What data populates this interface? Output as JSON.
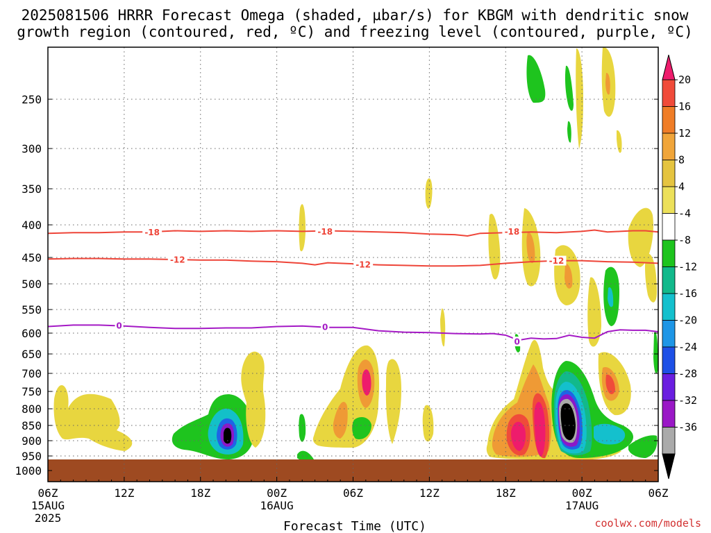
{
  "chart_data": {
    "type": "heatmap",
    "title_line1": "2025081506 HRRR Forecast Omega (shaded, µbar/s) for KBGM with dendritic snow",
    "title_line2": "growth region (contoured, red, ºC) and freezing level (contoured, purple, ºC)",
    "xlabel": "Forecast Time (UTC)",
    "credit": "coolwx.com/models",
    "x_ticks": [
      {
        "hour": 0,
        "label": "06Z",
        "sub1": "15AUG",
        "sub2": "2025"
      },
      {
        "hour": 6,
        "label": "12Z",
        "sub1": "",
        "sub2": ""
      },
      {
        "hour": 12,
        "label": "18Z",
        "sub1": "",
        "sub2": ""
      },
      {
        "hour": 18,
        "label": "00Z",
        "sub1": "16AUG",
        "sub2": ""
      },
      {
        "hour": 24,
        "label": "06Z",
        "sub1": "",
        "sub2": ""
      },
      {
        "hour": 30,
        "label": "12Z",
        "sub1": "",
        "sub2": ""
      },
      {
        "hour": 36,
        "label": "18Z",
        "sub1": "",
        "sub2": ""
      },
      {
        "hour": 42,
        "label": "00Z",
        "sub1": "17AUG",
        "sub2": ""
      },
      {
        "hour": 48,
        "label": "06Z",
        "sub1": "",
        "sub2": ""
      }
    ],
    "y_ticks": [
      250,
      300,
      350,
      400,
      450,
      500,
      550,
      600,
      650,
      700,
      750,
      800,
      850,
      900,
      950,
      1000
    ],
    "colorbar": {
      "labels": [
        "20",
        "16",
        "12",
        "8",
        "4",
        "-4",
        "-8",
        "-12",
        "-16",
        "-20",
        "-24",
        "-28",
        "-32",
        "-36"
      ],
      "colors": [
        "#ee1c6c",
        "#f04b3a",
        "#ef7d27",
        "#f0a53a",
        "#e5c440",
        "#ece05a",
        "#ffffff",
        "#1ec41e",
        "#12b98b",
        "#14c0cd",
        "#1e96e6",
        "#1e50e6",
        "#6a1ee0",
        "#9a18c6",
        "#aaaaaa",
        "#000000"
      ]
    },
    "contour_labels": {
      "m18": "-18",
      "m12": "-12",
      "zero": "0"
    },
    "series": [
      {
        "kind": "line",
        "color": "#ee4438",
        "points": [
          [
            0,
            413
          ],
          [
            2,
            412
          ],
          [
            4,
            412
          ],
          [
            6,
            411
          ],
          [
            8,
            411
          ],
          [
            10,
            409
          ],
          [
            12,
            410
          ],
          [
            14,
            409
          ],
          [
            16,
            410
          ],
          [
            18,
            409
          ],
          [
            20,
            410
          ],
          [
            22,
            409
          ],
          [
            24,
            410
          ],
          [
            26,
            411
          ],
          [
            28,
            412
          ],
          [
            30,
            414
          ],
          [
            32,
            415
          ],
          [
            33,
            417
          ],
          [
            34,
            413
          ],
          [
            36,
            412
          ],
          [
            38,
            411
          ],
          [
            40,
            412
          ],
          [
            42,
            410
          ],
          [
            43,
            408
          ],
          [
            44,
            411
          ],
          [
            45,
            410
          ],
          [
            46,
            409
          ],
          [
            47,
            409
          ],
          [
            48,
            411
          ]
        ]
      },
      {
        "kind": "line",
        "color": "#ee4438",
        "points": [
          [
            0,
            453
          ],
          [
            2,
            452
          ],
          [
            4,
            452
          ],
          [
            6,
            453
          ],
          [
            8,
            453
          ],
          [
            10,
            454
          ],
          [
            12,
            455
          ],
          [
            14,
            455
          ],
          [
            16,
            457
          ],
          [
            18,
            458
          ],
          [
            20,
            461
          ],
          [
            21,
            464
          ],
          [
            22,
            460
          ],
          [
            24,
            462
          ],
          [
            26,
            464
          ],
          [
            28,
            465
          ],
          [
            30,
            466
          ],
          [
            32,
            466
          ],
          [
            34,
            465
          ],
          [
            36,
            461
          ],
          [
            38,
            458
          ],
          [
            40,
            456
          ],
          [
            42,
            456
          ],
          [
            44,
            458
          ],
          [
            46,
            459
          ],
          [
            48,
            461
          ]
        ]
      },
      {
        "kind": "line",
        "color": "#a419c5",
        "points": [
          [
            0,
            586
          ],
          [
            2,
            583
          ],
          [
            4,
            583
          ],
          [
            6,
            585
          ],
          [
            8,
            588
          ],
          [
            10,
            590
          ],
          [
            12,
            590
          ],
          [
            14,
            589
          ],
          [
            16,
            589
          ],
          [
            18,
            586
          ],
          [
            20,
            585
          ],
          [
            22,
            588
          ],
          [
            24,
            588
          ],
          [
            26,
            595
          ],
          [
            28,
            598
          ],
          [
            30,
            599
          ],
          [
            32,
            601
          ],
          [
            34,
            602
          ],
          [
            35,
            601
          ],
          [
            36,
            605
          ],
          [
            37,
            617
          ],
          [
            38,
            612
          ],
          [
            39,
            614
          ],
          [
            40,
            613
          ],
          [
            41,
            605
          ],
          [
            42,
            610
          ],
          [
            43,
            612
          ],
          [
            44,
            597
          ],
          [
            45,
            593
          ],
          [
            46,
            594
          ],
          [
            47,
            594
          ],
          [
            48,
            597
          ]
        ]
      }
    ]
  }
}
